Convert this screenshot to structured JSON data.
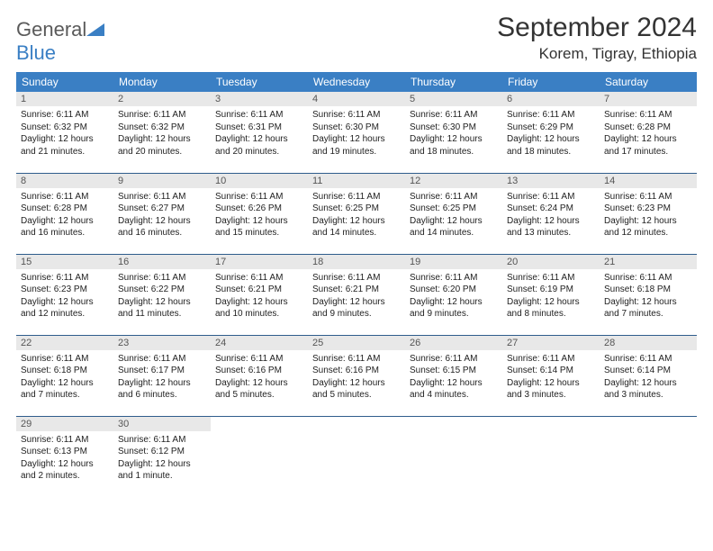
{
  "logo": {
    "word1": "General",
    "word2": "Blue"
  },
  "title": "September 2024",
  "location": "Korem, Tigray, Ethiopia",
  "colors": {
    "header_bg": "#3a7fc4",
    "header_text": "#ffffff",
    "day_bg": "#e8e8e8",
    "border": "#2f5d8c",
    "text": "#222222"
  },
  "weekdays": [
    "Sunday",
    "Monday",
    "Tuesday",
    "Wednesday",
    "Thursday",
    "Friday",
    "Saturday"
  ],
  "weeks": [
    [
      {
        "n": "1",
        "sr": "Sunrise: 6:11 AM",
        "ss": "Sunset: 6:32 PM",
        "dl": "Daylight: 12 hours and 21 minutes."
      },
      {
        "n": "2",
        "sr": "Sunrise: 6:11 AM",
        "ss": "Sunset: 6:32 PM",
        "dl": "Daylight: 12 hours and 20 minutes."
      },
      {
        "n": "3",
        "sr": "Sunrise: 6:11 AM",
        "ss": "Sunset: 6:31 PM",
        "dl": "Daylight: 12 hours and 20 minutes."
      },
      {
        "n": "4",
        "sr": "Sunrise: 6:11 AM",
        "ss": "Sunset: 6:30 PM",
        "dl": "Daylight: 12 hours and 19 minutes."
      },
      {
        "n": "5",
        "sr": "Sunrise: 6:11 AM",
        "ss": "Sunset: 6:30 PM",
        "dl": "Daylight: 12 hours and 18 minutes."
      },
      {
        "n": "6",
        "sr": "Sunrise: 6:11 AM",
        "ss": "Sunset: 6:29 PM",
        "dl": "Daylight: 12 hours and 18 minutes."
      },
      {
        "n": "7",
        "sr": "Sunrise: 6:11 AM",
        "ss": "Sunset: 6:28 PM",
        "dl": "Daylight: 12 hours and 17 minutes."
      }
    ],
    [
      {
        "n": "8",
        "sr": "Sunrise: 6:11 AM",
        "ss": "Sunset: 6:28 PM",
        "dl": "Daylight: 12 hours and 16 minutes."
      },
      {
        "n": "9",
        "sr": "Sunrise: 6:11 AM",
        "ss": "Sunset: 6:27 PM",
        "dl": "Daylight: 12 hours and 16 minutes."
      },
      {
        "n": "10",
        "sr": "Sunrise: 6:11 AM",
        "ss": "Sunset: 6:26 PM",
        "dl": "Daylight: 12 hours and 15 minutes."
      },
      {
        "n": "11",
        "sr": "Sunrise: 6:11 AM",
        "ss": "Sunset: 6:25 PM",
        "dl": "Daylight: 12 hours and 14 minutes."
      },
      {
        "n": "12",
        "sr": "Sunrise: 6:11 AM",
        "ss": "Sunset: 6:25 PM",
        "dl": "Daylight: 12 hours and 14 minutes."
      },
      {
        "n": "13",
        "sr": "Sunrise: 6:11 AM",
        "ss": "Sunset: 6:24 PM",
        "dl": "Daylight: 12 hours and 13 minutes."
      },
      {
        "n": "14",
        "sr": "Sunrise: 6:11 AM",
        "ss": "Sunset: 6:23 PM",
        "dl": "Daylight: 12 hours and 12 minutes."
      }
    ],
    [
      {
        "n": "15",
        "sr": "Sunrise: 6:11 AM",
        "ss": "Sunset: 6:23 PM",
        "dl": "Daylight: 12 hours and 12 minutes."
      },
      {
        "n": "16",
        "sr": "Sunrise: 6:11 AM",
        "ss": "Sunset: 6:22 PM",
        "dl": "Daylight: 12 hours and 11 minutes."
      },
      {
        "n": "17",
        "sr": "Sunrise: 6:11 AM",
        "ss": "Sunset: 6:21 PM",
        "dl": "Daylight: 12 hours and 10 minutes."
      },
      {
        "n": "18",
        "sr": "Sunrise: 6:11 AM",
        "ss": "Sunset: 6:21 PM",
        "dl": "Daylight: 12 hours and 9 minutes."
      },
      {
        "n": "19",
        "sr": "Sunrise: 6:11 AM",
        "ss": "Sunset: 6:20 PM",
        "dl": "Daylight: 12 hours and 9 minutes."
      },
      {
        "n": "20",
        "sr": "Sunrise: 6:11 AM",
        "ss": "Sunset: 6:19 PM",
        "dl": "Daylight: 12 hours and 8 minutes."
      },
      {
        "n": "21",
        "sr": "Sunrise: 6:11 AM",
        "ss": "Sunset: 6:18 PM",
        "dl": "Daylight: 12 hours and 7 minutes."
      }
    ],
    [
      {
        "n": "22",
        "sr": "Sunrise: 6:11 AM",
        "ss": "Sunset: 6:18 PM",
        "dl": "Daylight: 12 hours and 7 minutes."
      },
      {
        "n": "23",
        "sr": "Sunrise: 6:11 AM",
        "ss": "Sunset: 6:17 PM",
        "dl": "Daylight: 12 hours and 6 minutes."
      },
      {
        "n": "24",
        "sr": "Sunrise: 6:11 AM",
        "ss": "Sunset: 6:16 PM",
        "dl": "Daylight: 12 hours and 5 minutes."
      },
      {
        "n": "25",
        "sr": "Sunrise: 6:11 AM",
        "ss": "Sunset: 6:16 PM",
        "dl": "Daylight: 12 hours and 5 minutes."
      },
      {
        "n": "26",
        "sr": "Sunrise: 6:11 AM",
        "ss": "Sunset: 6:15 PM",
        "dl": "Daylight: 12 hours and 4 minutes."
      },
      {
        "n": "27",
        "sr": "Sunrise: 6:11 AM",
        "ss": "Sunset: 6:14 PM",
        "dl": "Daylight: 12 hours and 3 minutes."
      },
      {
        "n": "28",
        "sr": "Sunrise: 6:11 AM",
        "ss": "Sunset: 6:14 PM",
        "dl": "Daylight: 12 hours and 3 minutes."
      }
    ],
    [
      {
        "n": "29",
        "sr": "Sunrise: 6:11 AM",
        "ss": "Sunset: 6:13 PM",
        "dl": "Daylight: 12 hours and 2 minutes."
      },
      {
        "n": "30",
        "sr": "Sunrise: 6:11 AM",
        "ss": "Sunset: 6:12 PM",
        "dl": "Daylight: 12 hours and 1 minute."
      },
      null,
      null,
      null,
      null,
      null
    ]
  ]
}
